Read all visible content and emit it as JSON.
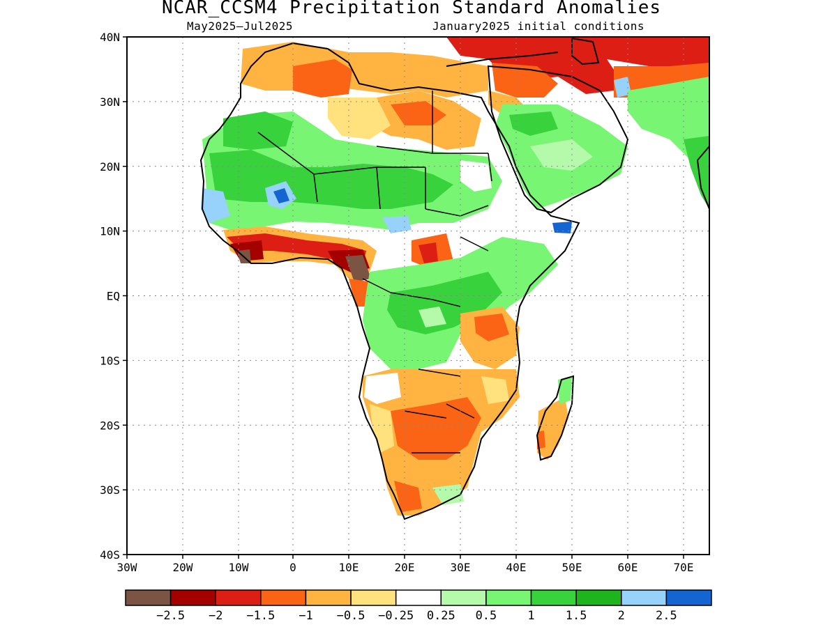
{
  "title": "NCAR_CCSM4 Precipitation Standard Anomalies",
  "subtitle_left": "May2025–Jul2025",
  "subtitle_right": "January2025 initial conditions",
  "lat_labels": [
    "40N",
    "30N",
    "20N",
    "10N",
    "EQ",
    "10S",
    "20S",
    "30S",
    "40S"
  ],
  "lon_labels": [
    "30W",
    "20W",
    "10W",
    "0",
    "10E",
    "20E",
    "30E",
    "40E",
    "50E",
    "60E",
    "70E"
  ],
  "colorbar": {
    "colors": [
      "#7b5444",
      "#a50000",
      "#dc1e14",
      "#fa6414",
      "#ffb442",
      "#ffe27e",
      "#ffffff",
      "#b4faaa",
      "#78f573",
      "#37d23c",
      "#1eb41e",
      "#96d2fa",
      "#1464d2"
    ],
    "labels": [
      "−2.5",
      "−2",
      "−1.5",
      "−1",
      "−0.5",
      "−0.25",
      "0.25",
      "0.5",
      "1",
      "1.5",
      "2",
      "2.5"
    ]
  },
  "anomaly_colors": {
    "very_dry": "#7b5444",
    "extreme_dry": "#a50000",
    "strong_dry": "#dc1e14",
    "dry": "#fa6414",
    "mod_dry": "#ffb442",
    "slight_dry": "#ffe27e",
    "neutral": "#ffffff",
    "slight_wet": "#b4faaa",
    "wet": "#78f573",
    "mod_wet": "#37d23c",
    "strong_wet": "#1eb41e",
    "very_wet": "#96d2fa",
    "extreme_wet": "#1464d2"
  }
}
